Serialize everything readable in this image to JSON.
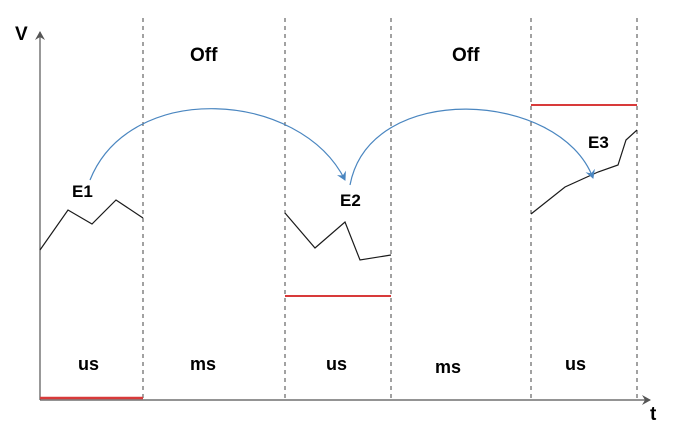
{
  "axes": {
    "y_label": "V",
    "x_label": "t"
  },
  "segments": [
    {
      "label": "us",
      "kind": "active"
    },
    {
      "label": "ms",
      "kind": "off",
      "top_label": "Off"
    },
    {
      "label": "us",
      "kind": "active"
    },
    {
      "label": "ms",
      "kind": "off",
      "top_label": "Off"
    },
    {
      "label": "us",
      "kind": "active"
    }
  ],
  "events": [
    {
      "label": "E1"
    },
    {
      "label": "E2"
    },
    {
      "label": "E3"
    }
  ],
  "colors": {
    "axis": "#555555",
    "signal": "#1a1a1a",
    "threshold": "#d83a3a",
    "arrow": "#4a86c0",
    "divider": "#444444"
  }
}
